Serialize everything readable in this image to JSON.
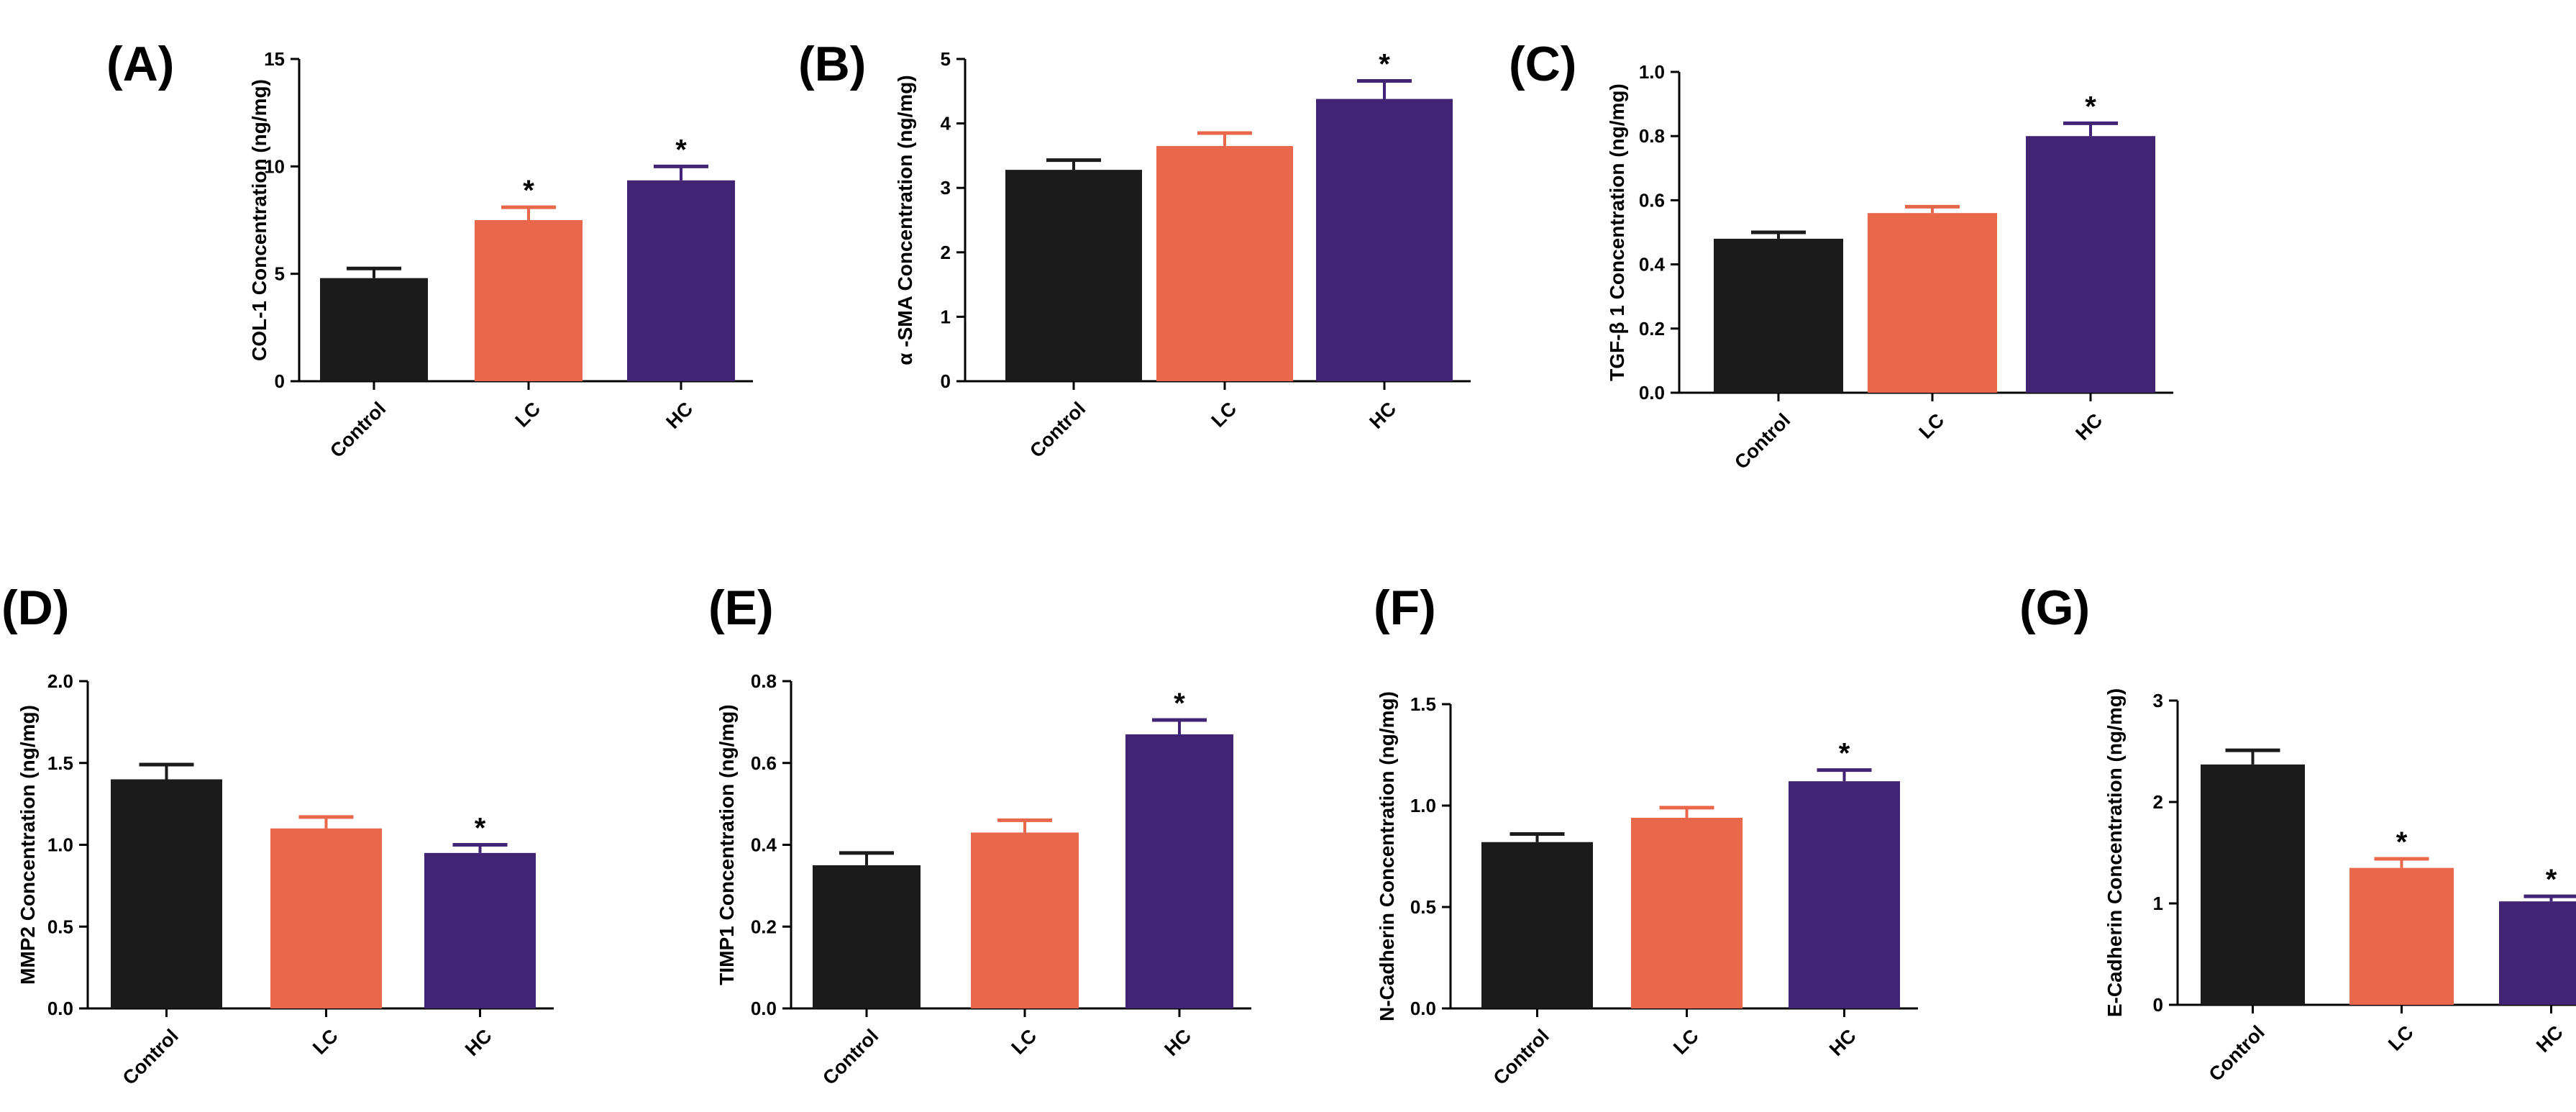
{
  "figure": {
    "colors": {
      "Control": "#1b1b1b",
      "LC": "#e9674b",
      "HC": "#422475",
      "axis": "#000000"
    }
  },
  "chart_data": [
    {
      "type": "bar",
      "panel": "(A)",
      "categories": [
        "Control",
        "LC",
        "HC"
      ],
      "values": [
        4.8,
        7.5,
        9.35
      ],
      "errors": [
        0.45,
        0.6,
        0.65
      ],
      "significance": [
        "",
        "*",
        "*"
      ],
      "ylabel": "COL-1 Concentration (ng/mg)",
      "ylim": [
        0,
        15
      ],
      "yticks": [
        0,
        5,
        10,
        15
      ],
      "ytick_labels": [
        "0",
        "5",
        "10",
        "15"
      ]
    },
    {
      "type": "bar",
      "panel": "(B)",
      "categories": [
        "Control",
        "LC",
        "HC"
      ],
      "values": [
        3.28,
        3.65,
        4.38
      ],
      "errors": [
        0.15,
        0.2,
        0.28
      ],
      "significance": [
        "",
        "",
        "*"
      ],
      "ylabel": "α -SMA Concentration (ng/mg)",
      "ylim": [
        0,
        5
      ],
      "yticks": [
        0,
        1,
        2,
        3,
        4,
        5
      ],
      "ytick_labels": [
        "0",
        "1",
        "2",
        "3",
        "4",
        "5"
      ]
    },
    {
      "type": "bar",
      "panel": "(C)",
      "categories": [
        "Control",
        "LC",
        "HC"
      ],
      "values": [
        0.48,
        0.56,
        0.8
      ],
      "errors": [
        0.02,
        0.02,
        0.04
      ],
      "significance": [
        "",
        "",
        "*"
      ],
      "ylabel": "TGF-β 1 Concentration (ng/mg)",
      "ylim": [
        0,
        1.0
      ],
      "yticks": [
        0,
        0.2,
        0.4,
        0.6,
        0.8,
        1.0
      ],
      "ytick_labels": [
        "0.0",
        "0.2",
        "0.4",
        "0.6",
        "0.8",
        "1.0"
      ]
    },
    {
      "type": "bar",
      "panel": "(D)",
      "categories": [
        "Control",
        "LC",
        "HC"
      ],
      "values": [
        1.4,
        1.1,
        0.95
      ],
      "errors": [
        0.09,
        0.07,
        0.05
      ],
      "significance": [
        "",
        "",
        "*"
      ],
      "ylabel": "MMP2 Concentration (ng/mg)",
      "ylim": [
        0,
        2.0
      ],
      "yticks": [
        0,
        0.5,
        1.0,
        1.5,
        2.0
      ],
      "ytick_labels": [
        "0.0",
        "0.5",
        "1.0",
        "1.5",
        "2.0"
      ]
    },
    {
      "type": "bar",
      "panel": "(E)",
      "categories": [
        "Control",
        "LC",
        "HC"
      ],
      "values": [
        0.35,
        0.43,
        0.67
      ],
      "errors": [
        0.03,
        0.03,
        0.035
      ],
      "significance": [
        "",
        "",
        "*"
      ],
      "ylabel": "TIMP1 Concentration (ng/mg)",
      "ylim": [
        0,
        0.8
      ],
      "yticks": [
        0,
        0.2,
        0.4,
        0.6,
        0.8
      ],
      "ytick_labels": [
        "0.0",
        "0.2",
        "0.4",
        "0.6",
        "0.8"
      ]
    },
    {
      "type": "bar",
      "panel": "(F)",
      "categories": [
        "Control",
        "LC",
        "HC"
      ],
      "values": [
        0.82,
        0.94,
        1.12
      ],
      "errors": [
        0.04,
        0.05,
        0.055
      ],
      "significance": [
        "",
        "",
        "*"
      ],
      "ylabel": "N-Cadherin Concentration (ng/mg)",
      "ylim": [
        0,
        1.5
      ],
      "yticks": [
        0,
        0.5,
        1.0,
        1.5
      ],
      "ytick_labels": [
        "0.0",
        "0.5",
        "1.0",
        "1.5"
      ]
    },
    {
      "type": "bar",
      "panel": "(G)",
      "categories": [
        "Control",
        "LC",
        "HC"
      ],
      "values": [
        2.37,
        1.35,
        1.02
      ],
      "errors": [
        0.14,
        0.09,
        0.05
      ],
      "significance": [
        "",
        "*",
        "*"
      ],
      "ylabel": "E-Cadherin Concentration (ng/mg)",
      "ylim": [
        0,
        3
      ],
      "yticks": [
        0,
        1,
        2,
        3
      ],
      "ytick_labels": [
        "0",
        "1",
        "2",
        "3"
      ]
    }
  ]
}
